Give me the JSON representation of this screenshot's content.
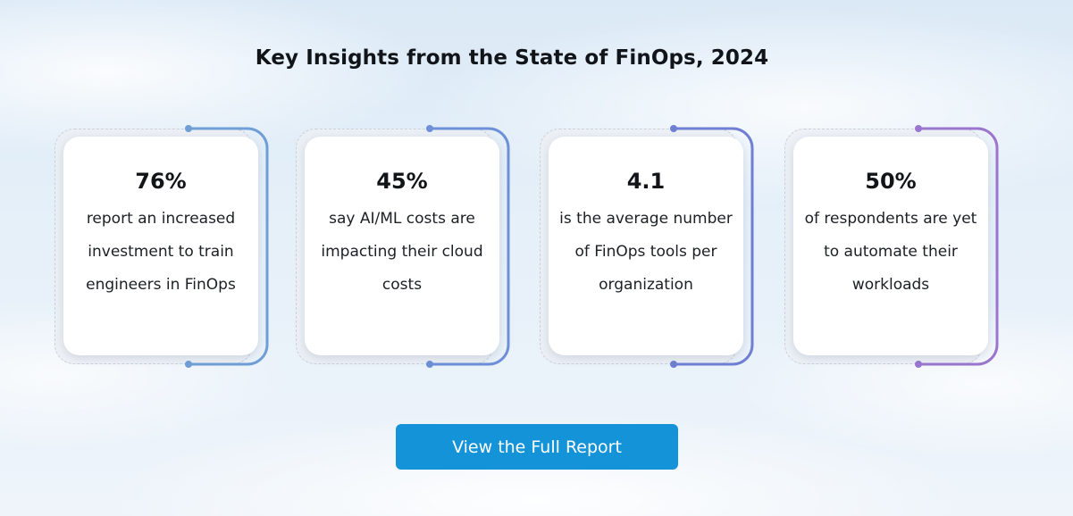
{
  "title": "Key Insights from the State of FinOps, 2024",
  "cards": [
    {
      "value": "76%",
      "text": "report an increased investment to train engineers in FinOps",
      "accent": "#6f9fd6"
    },
    {
      "value": "45%",
      "text": "say AI/ML costs are impacting their cloud costs",
      "accent": "#6d90d8"
    },
    {
      "value": "4.1",
      "text": "is the average number of FinOps tools per organization",
      "accent": "#6f7fd3"
    },
    {
      "value": "50%",
      "text": "of respondents are yet to automate their workloads",
      "accent": "#9a76cf"
    }
  ],
  "cta": {
    "label": "View the Full Report",
    "color": "#1593d8"
  }
}
